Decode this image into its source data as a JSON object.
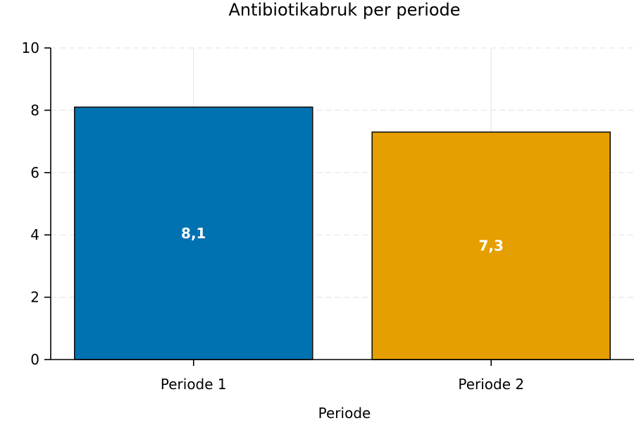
{
  "chart_data": {
    "type": "bar",
    "title": "Antibiotikabruk per periode",
    "xlabel": "Periode",
    "ylabel": "",
    "categories": [
      "Periode 1",
      "Periode 2"
    ],
    "values": [
      8.1,
      7.3
    ],
    "value_labels": [
      "8,1",
      "7,3"
    ],
    "colors": [
      "#0072b2",
      "#e69f00"
    ],
    "ylim": [
      0,
      10
    ],
    "yticks": [
      0,
      2,
      4,
      6,
      8,
      10
    ],
    "grid": true,
    "legend": "none"
  }
}
